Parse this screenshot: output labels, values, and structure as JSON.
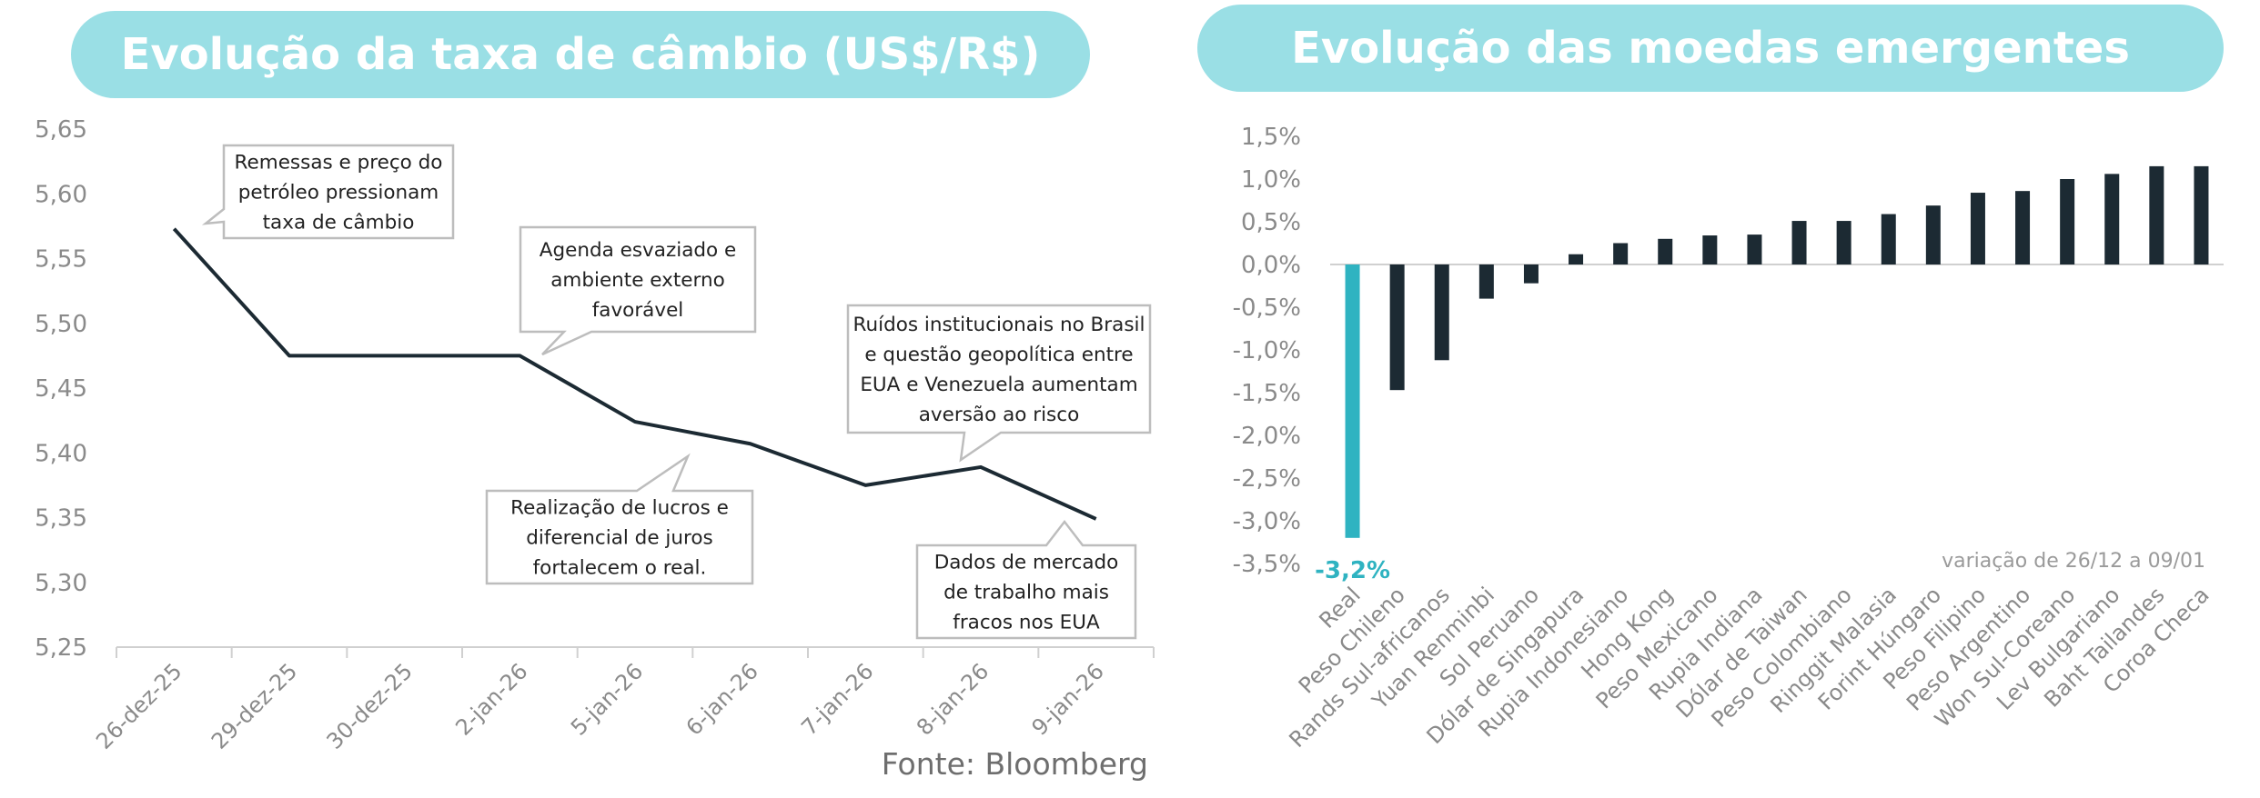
{
  "chart_data": [
    {
      "type": "line",
      "title": "Evolução da taxa de câmbio (US$/R$)",
      "categories": [
        "26-dez-25",
        "29-dez-25",
        "30-dez-25",
        "2-jan-26",
        "5-jan-26",
        "6-jan-26",
        "7-jan-26",
        "8-jan-26",
        "9-jan-26"
      ],
      "series": [
        {
          "values": [
            5.573,
            5.475,
            5.475,
            5.475,
            5.424,
            5.407,
            5.375,
            5.389,
            5.349
          ]
        }
      ],
      "ylim": [
        5.25,
        5.65
      ],
      "yticks": [
        "5,25",
        "5,30",
        "5,35",
        "5,40",
        "5,45",
        "5,50",
        "5,55",
        "5,60",
        "5,65"
      ],
      "line_color": "#1c2a33",
      "annotations": [
        {
          "lines": [
            "Remessas e preço do",
            "petróleo pressionam",
            "taxa de câmbio"
          ]
        },
        {
          "lines": [
            "Agenda esvaziado e",
            "ambiente externo",
            "favorável"
          ]
        },
        {
          "lines": [
            "Ruídos institucionais no Brasil",
            "e questão geopolítica entre",
            "EUA e Venezuela aumentam",
            "aversão ao risco"
          ]
        },
        {
          "lines": [
            "Realização de lucros e",
            "diferencial de juros",
            "fortalecem o real."
          ]
        },
        {
          "lines": [
            "Dados de mercado",
            "de trabalho mais",
            "fracos nos EUA"
          ]
        }
      ],
      "source": "Fonte: Bloomberg"
    },
    {
      "type": "bar",
      "title": "Evolução das moedas emergentes",
      "categories": [
        "Real",
        "Peso Chileno",
        "Rands Sul-africanos",
        "Yuan Renminbi",
        "Sol Peruano",
        "Dólar de Singapura",
        "Rupia Indonesiano",
        "Hong Kong",
        "Peso Mexicano",
        "Rupia Indiana",
        "Dólar de Taiwan",
        "Peso Colombiano",
        "Ringgit Malasia",
        "Forint Húngaro",
        "Peso Filipino",
        "Peso Argentino",
        "Won Sul-Coreano",
        "Lev Bulgariano",
        "Baht Tailandes",
        "Coroa Checa"
      ],
      "values": [
        -3.2,
        -1.47,
        -1.12,
        -0.4,
        -0.22,
        0.12,
        0.25,
        0.3,
        0.34,
        0.35,
        0.51,
        0.51,
        0.59,
        0.69,
        0.84,
        0.86,
        1.0,
        1.06,
        1.15,
        1.15
      ],
      "ylim": [
        -3.5,
        1.5
      ],
      "yticks": [
        "-3,5%",
        "-3,0%",
        "-2,5%",
        "-2,0%",
        "-1,5%",
        "-1,0%",
        "-0,5%",
        "0,0%",
        "0,5%",
        "1,0%",
        "1,5%"
      ],
      "highlight_label": "-3,2%",
      "note": "variação de 26/12 a 09/01",
      "bar_color": "#1c2a33",
      "highlight_color": "#2fb3c1"
    }
  ]
}
